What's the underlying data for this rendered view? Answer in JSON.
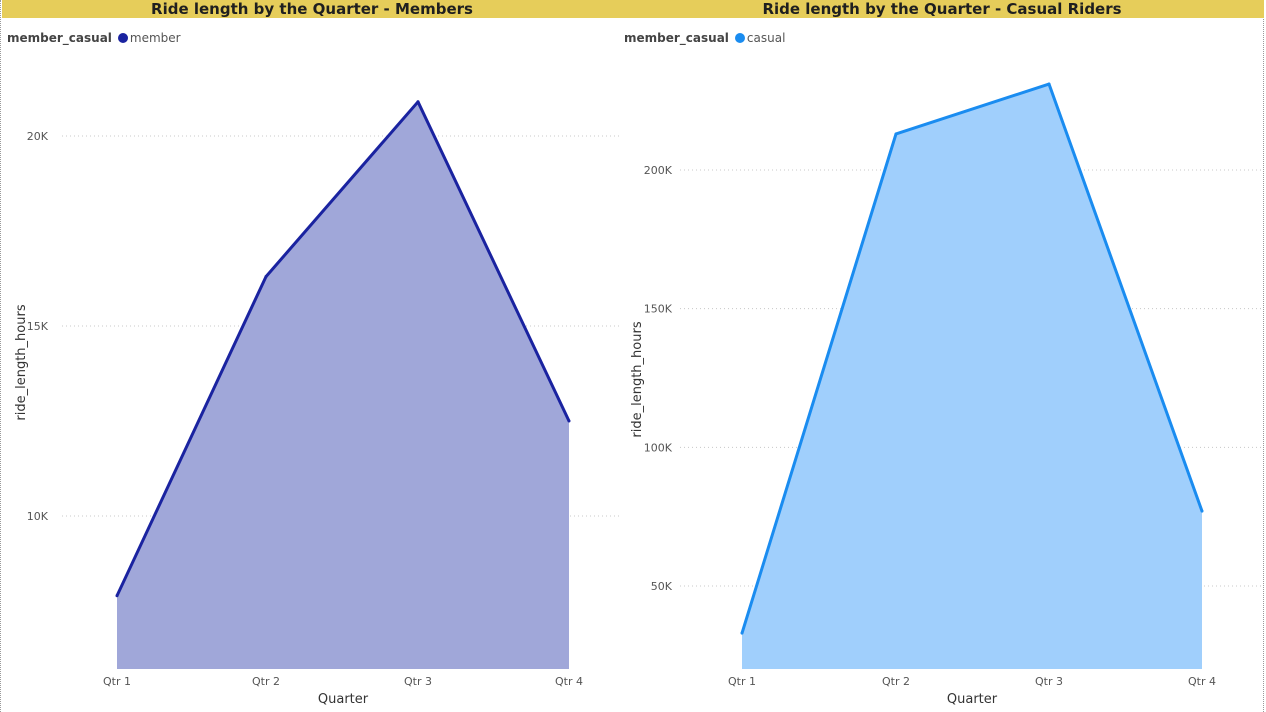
{
  "chart_data": [
    {
      "type": "area",
      "title": "Ride length by the Quarter - Members",
      "legend_title": "member_casual",
      "legend_position": "top-left",
      "xlabel": "Quarter",
      "ylabel": "ride_length_hours",
      "grid": true,
      "categories": [
        "Qtr 1",
        "Qtr 2",
        "Qtr 3",
        "Qtr 4"
      ],
      "series": [
        {
          "name": "member",
          "values": [
            7900,
            16300,
            20900,
            12500
          ],
          "line_color": "#1a23a0",
          "fill_color": "#a0a7d9"
        }
      ],
      "yticks": [
        10000,
        15000,
        20000
      ],
      "ytick_labels": [
        "10K",
        "15K",
        "20K"
      ],
      "ylim": [
        6000,
        22000
      ]
    },
    {
      "type": "area",
      "title": "Ride length by the Quarter - Casual Riders",
      "legend_title": "member_casual",
      "legend_position": "top-left",
      "xlabel": "Quarter",
      "ylabel": "ride_length_hours",
      "grid": true,
      "categories": [
        "Qtr 1",
        "Qtr 2",
        "Qtr 3",
        "Qtr 4"
      ],
      "series": [
        {
          "name": "casual",
          "values": [
            33000,
            213000,
            231000,
            77000
          ],
          "line_color": "#1a8cf0",
          "fill_color": "#a0cffc"
        }
      ],
      "yticks": [
        50000,
        100000,
        150000,
        200000
      ],
      "ytick_labels": [
        "50K",
        "100K",
        "150K",
        "200K"
      ],
      "ylim": [
        20000,
        240000
      ]
    }
  ]
}
